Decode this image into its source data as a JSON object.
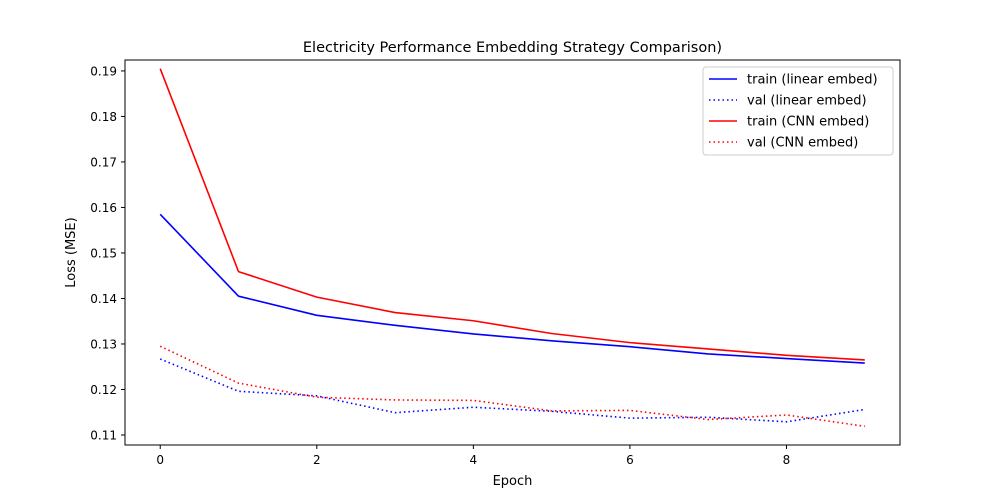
{
  "chart_data": {
    "type": "line",
    "title": "Electricity Performance Embedding Strategy Comparison)",
    "xlabel": "Epoch",
    "ylabel": "Loss (MSE)",
    "xlim": [
      -0.45,
      9.45
    ],
    "ylim": [
      0.1078,
      0.1924
    ],
    "xticks": [
      0,
      2,
      4,
      6,
      8
    ],
    "xtick_labels": [
      "0",
      "2",
      "4",
      "6",
      "8"
    ],
    "yticks": [
      0.11,
      0.12,
      0.13,
      0.14,
      0.15,
      0.16,
      0.17,
      0.18,
      0.19
    ],
    "ytick_labels": [
      "0.11",
      "0.12",
      "0.13",
      "0.14",
      "0.15",
      "0.16",
      "0.17",
      "0.18",
      "0.19"
    ],
    "grid": false,
    "legend_position": "top-right",
    "x": [
      0,
      1,
      2,
      3,
      4,
      5,
      6,
      7,
      8,
      9
    ],
    "series": [
      {
        "name": "train (linear embed)",
        "color": "#0000ff",
        "linestyle": "solid",
        "values": [
          0.1585,
          0.1405,
          0.1363,
          0.1341,
          0.1322,
          0.1307,
          0.1294,
          0.1278,
          0.1268,
          0.1258
        ]
      },
      {
        "name": "val (linear embed)",
        "color": "#0000ff",
        "linestyle": "dotted",
        "values": [
          0.1267,
          0.1196,
          0.1186,
          0.1149,
          0.1161,
          0.1152,
          0.1137,
          0.1139,
          0.1129,
          0.1156
        ]
      },
      {
        "name": "train (CNN embed)",
        "color": "#ff0000",
        "linestyle": "solid",
        "values": [
          0.1905,
          0.1459,
          0.1403,
          0.1369,
          0.1351,
          0.1323,
          0.1303,
          0.1289,
          0.1275,
          0.1265
        ]
      },
      {
        "name": "val (CNN embed)",
        "color": "#ff0000",
        "linestyle": "dotted",
        "values": [
          0.1295,
          0.1214,
          0.1183,
          0.1177,
          0.1176,
          0.1153,
          0.1154,
          0.1134,
          0.1144,
          0.1119
        ]
      }
    ]
  }
}
